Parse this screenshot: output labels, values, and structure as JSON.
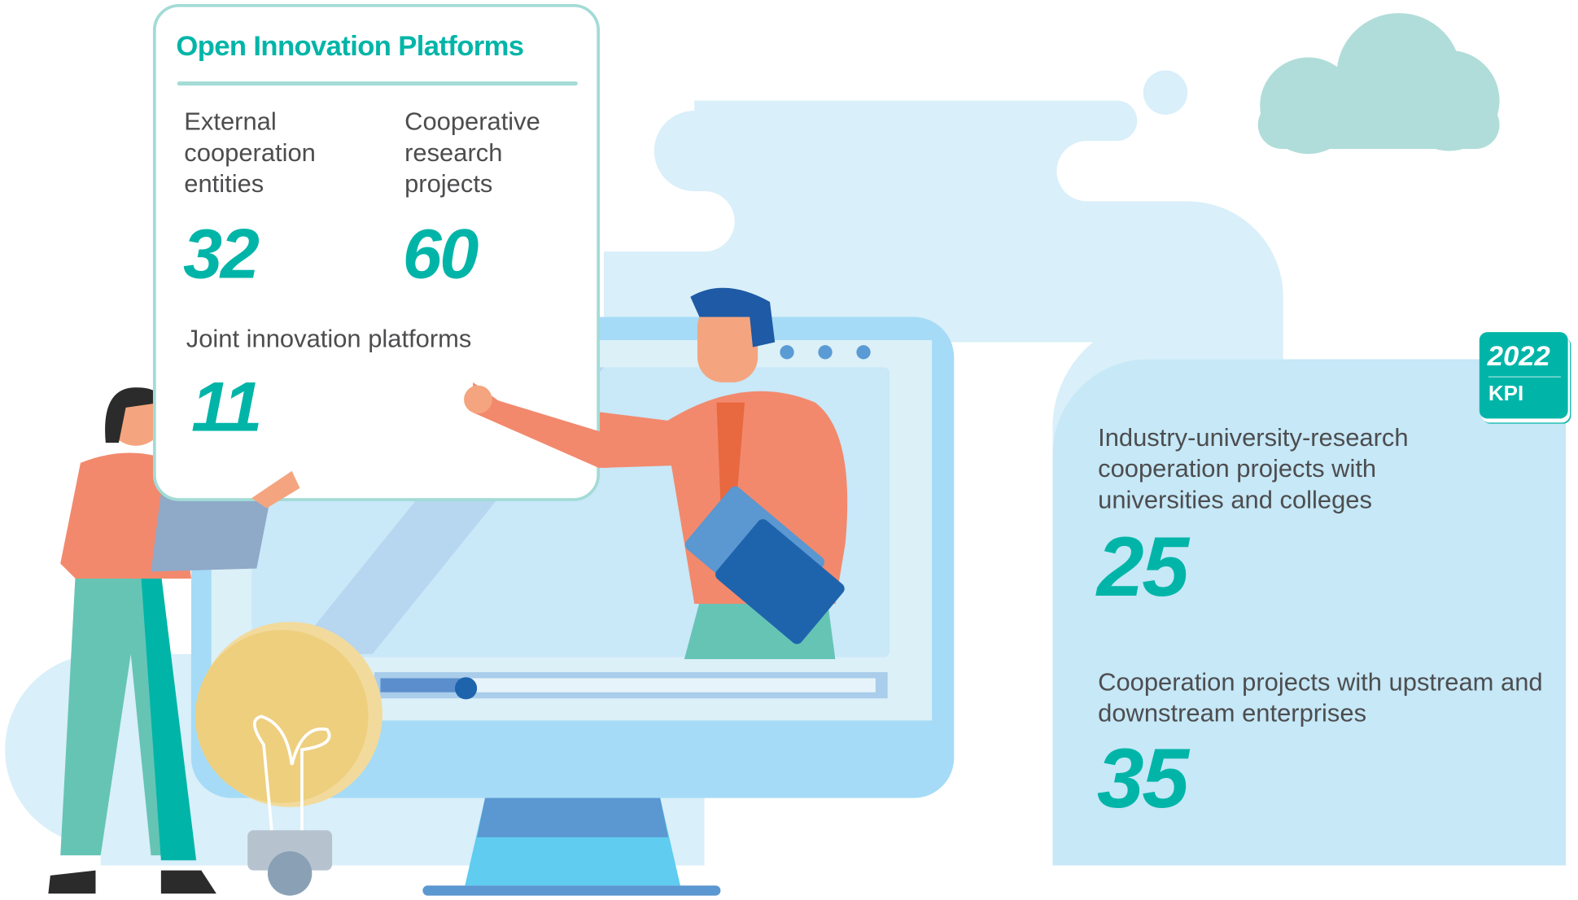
{
  "platforms": {
    "title": "Open Innovation Platforms",
    "external_label": "External cooperation entities",
    "external_value": "32",
    "research_label": "Cooperative research projects",
    "research_value": "60",
    "joint_label": "Joint innovation platforms",
    "joint_value": "11"
  },
  "kpi": {
    "year": "2022",
    "label": "KPI",
    "university_label": "Industry-university-research cooperation projects with universities and colleges",
    "university_value": "25",
    "enterprise_label": "Cooperation projects with upstream and downstream enterprises",
    "enterprise_value": "35"
  },
  "colors": {
    "accent": "#00b5a8",
    "panel": "#c6e8f7",
    "text": "#4d4d4f"
  }
}
